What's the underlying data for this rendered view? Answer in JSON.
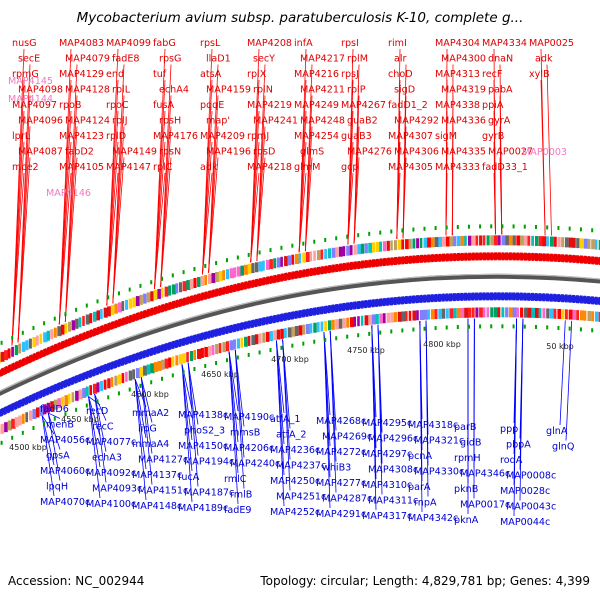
{
  "title": "Mycobacterium avium subsp. paratuberculosis K-10, complete g...",
  "footer": {
    "accession": "Accession: NC_002944",
    "summary": "Topology: circular; Length: 4,829,781 bp; Genes: 4,399"
  },
  "tick_labels": [
    "4500 kbp",
    "4550 kbp",
    "4600 kbp",
    "4650 kbp",
    "4700 kbp",
    "4750 kbp",
    "4800 kbp",
    "50 kbp"
  ],
  "forward_genes": [
    "nusG",
    "secE",
    "rpmG",
    "MAP4098",
    "MAP4097",
    "MAP4096",
    "lprL",
    "MAP4087",
    "mce2",
    "MAP4083",
    "MAP4079",
    "MAP4129",
    "MAP4128",
    "rpoB",
    "MAP4124",
    "MAP4123",
    "fabD2",
    "MAP4105",
    "MAP4099",
    "fadE8",
    "end",
    "rplL",
    "rpoC",
    "rplJ",
    "rplD",
    "MAP4149",
    "MAP4147",
    "fabG",
    "rpsG",
    "tuf",
    "echA4",
    "fusA",
    "rpsH",
    "MAP4176",
    "rpsN",
    "rplC",
    "rpsL",
    "llaD1",
    "atsA",
    "MAP4159",
    "pqqE",
    "map'",
    "MAP4209",
    "MAP4196",
    "adk",
    "MAP4208",
    "secY",
    "rplX",
    "rplN",
    "MAP4219",
    "MAP4241",
    "rpmJ",
    "rpsD",
    "MAP4218",
    "infA",
    "MAP4217",
    "MAP4216",
    "MAP4211",
    "MAP4249",
    "MAP4248",
    "MAP4254",
    "glmS",
    "glmM",
    "rpsI",
    "rplM",
    "rpsJ",
    "rplP",
    "MAP4267",
    "guaB2",
    "guaB3",
    "MAP4276",
    "gcp",
    "rimI",
    "alr",
    "choD",
    "sigD",
    "fadD1_2",
    "MAP4292",
    "MAP4307",
    "MAP4306",
    "MAP4305",
    "MAP4304",
    "MAP4300",
    "MAP4313",
    "MAP4319",
    "MAP4338",
    "MAP4336",
    "sigM",
    "MAP4335",
    "MAP4333",
    "MAP4334",
    "dnaN",
    "recF",
    "pabA",
    "ppiA",
    "gyrA",
    "gyrB",
    "MAP0027",
    "fadD33_1",
    "MAP0025",
    "adk",
    "xylB"
  ],
  "pink_genes": [
    "MAP4145",
    "MAP4144",
    "MAP4146",
    "MAP0003"
  ],
  "reverse_genes": [
    "fadD6",
    "menB",
    "MAP4056c",
    "gpsA",
    "MAP4060c",
    "lpqH",
    "MAP4070c",
    "recD",
    "recC",
    "MAP4077c",
    "echA3",
    "MAP4092c",
    "MAP4093c",
    "MAP4100c",
    "mmaA2",
    "lipG",
    "mmaA4",
    "MAP4127c",
    "MAP4137c",
    "MAP4151c",
    "MAP4148c",
    "MAP4138c",
    "phoS2_3",
    "MAP4150c",
    "MAP4194c",
    "fucA",
    "MAP4187c",
    "MAP4189c",
    "MAP4190c",
    "mmsB",
    "MAP4206c",
    "MAP4240c",
    "rmlC",
    "rmlB",
    "fadE9",
    "atfA_1",
    "atfA_2",
    "MAP4236c",
    "MAP4237c",
    "MAP4250c",
    "MAP4251c",
    "MAP4252c",
    "MAP4268c",
    "MAP4269c",
    "MAP4272c",
    "whiB3",
    "MAP4277c",
    "MAP4287c",
    "MAP4291c",
    "MAP4295c",
    "MAP4296c",
    "MAP4297c",
    "MAP4308c",
    "MAP4310c",
    "MAP4311c",
    "MAP4317c",
    "MAP4318c",
    "MAP4321c",
    "pcnA",
    "MAP4330c",
    "parA",
    "rnpA",
    "MAP4342c",
    "parB",
    "gidB",
    "rpmH",
    "MAP4346c",
    "pknB",
    "MAP0017c",
    "pknA",
    "ppp",
    "pbpA",
    "rodA",
    "MAP0008c",
    "MAP0028c",
    "MAP0043c",
    "MAP0044c",
    "glnA",
    "glnQ"
  ]
}
